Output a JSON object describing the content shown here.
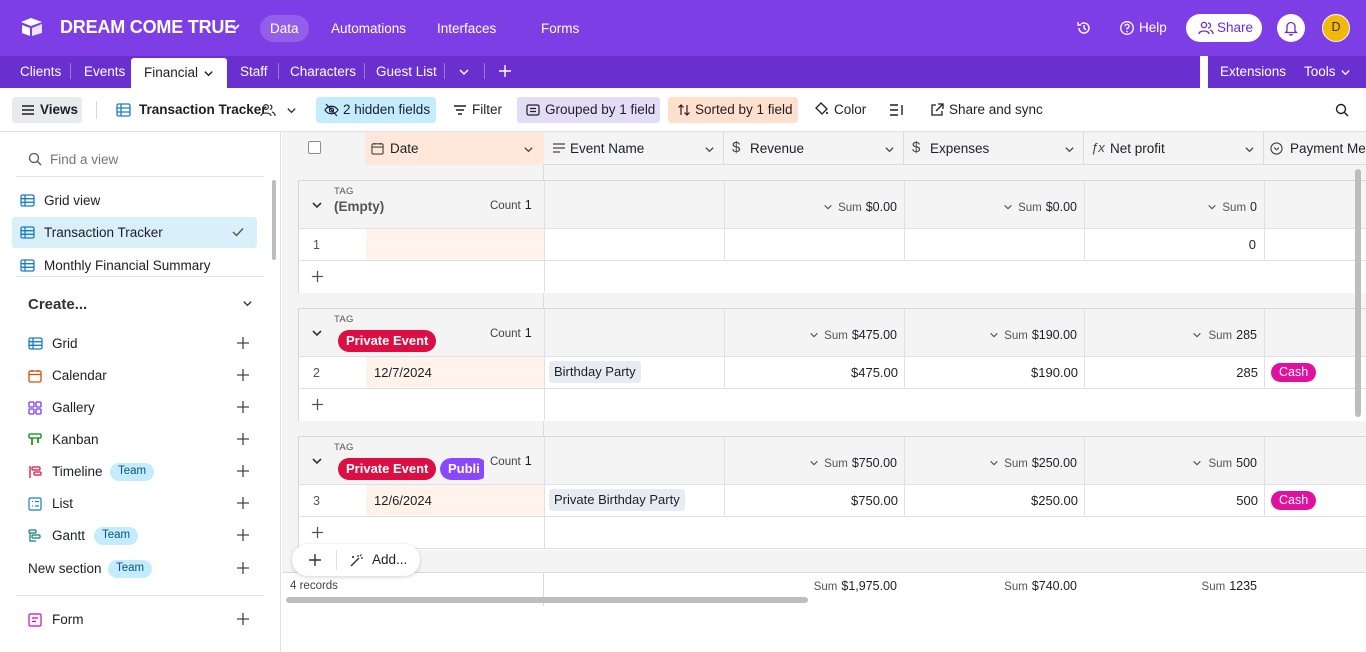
{
  "topbar": {
    "base_name": "DREAM COME TRUE",
    "nav": [
      "Data",
      "Automations",
      "Interfaces",
      "Forms"
    ],
    "help": "Help",
    "share": "Share",
    "avatar": "D",
    "colors": {
      "topbar": "#7e3ee6",
      "tabbar": "#6a2fcf"
    }
  },
  "tabs": {
    "items": [
      "Clients",
      "Events",
      "Financial",
      "Staff",
      "Characters",
      "Guest List"
    ],
    "extensions": "Extensions",
    "tools": "Tools"
  },
  "viewbar": {
    "views": "Views",
    "view_name": "Transaction Tracker",
    "hidden": "2 hidden fields",
    "filter": "Filter",
    "grouped": "Grouped by 1 field",
    "sorted": "Sorted by 1 field",
    "color": "Color",
    "share_sync": "Share and sync"
  },
  "sidebar": {
    "search_placeholder": "Find a view",
    "views": [
      "Grid view",
      "Transaction Tracker",
      "Monthly Financial Summary"
    ],
    "create": "Create...",
    "create_items": [
      "Grid",
      "Calendar",
      "Gallery",
      "Kanban",
      "Timeline",
      "List",
      "Gantt"
    ],
    "team": "Team",
    "new_section": "New section",
    "form": "Form"
  },
  "grid": {
    "columns": [
      "Date",
      "Event Name",
      "Revenue",
      "Expenses",
      "Net profit",
      "Payment Met"
    ],
    "tag_label": "TAG",
    "count_label": "Count",
    "sum_label": "Sum",
    "groups": [
      {
        "title": "(Empty)",
        "count": "1",
        "revenue": "$0.00",
        "expenses": "$0.00",
        "net": "0",
        "row": {
          "num": "1",
          "date": "",
          "event": "",
          "revenue": "",
          "expenses": "",
          "net": "0",
          "payment": ""
        }
      },
      {
        "tags": [
          "Private Event"
        ],
        "count": "1",
        "revenue": "$475.00",
        "expenses": "$190.00",
        "net": "285",
        "row": {
          "num": "2",
          "date": "12/7/2024",
          "event": "Birthday Party",
          "revenue": "$475.00",
          "expenses": "$190.00",
          "net": "285",
          "payment": "Cash"
        }
      },
      {
        "tags": [
          "Private Event",
          "Publi"
        ],
        "count": "1",
        "revenue": "$750.00",
        "expenses": "$250.00",
        "net": "500",
        "row": {
          "num": "3",
          "date": "12/6/2024",
          "event": "Private Birthday Party",
          "revenue": "$750.00",
          "expenses": "$250.00",
          "net": "500",
          "payment": "Cash"
        }
      }
    ],
    "footer": {
      "records": "4 records",
      "revenue": "$1,975.00",
      "expenses": "$740.00",
      "net": "1235"
    },
    "add": "Add...",
    "colors": {
      "private_event": "#dc0f45",
      "public": "#8b46ff",
      "cash": "#e0119d"
    }
  }
}
